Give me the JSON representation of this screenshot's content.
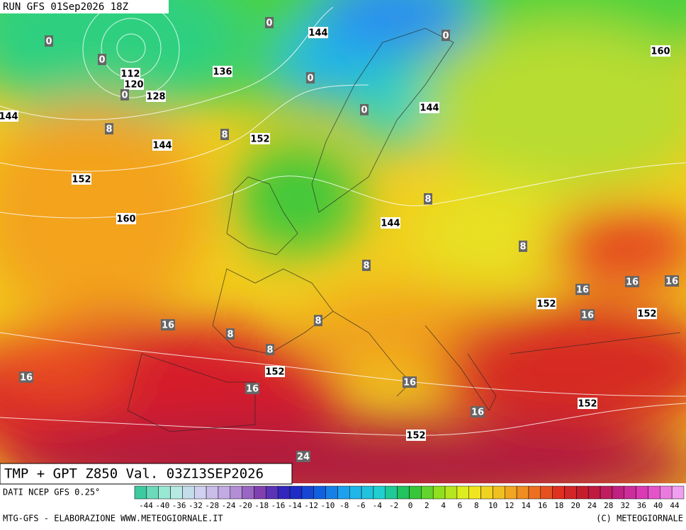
{
  "header": {
    "run": "RUN GFS 01Sep2026 18Z",
    "product": "TMP + GPT Z850 Val. 03Z13SEP2026"
  },
  "map_labels": [
    "0",
    "144",
    "0",
    "160",
    "0",
    "0",
    "112",
    "120",
    "0",
    "128",
    "136",
    "0",
    "144",
    "0",
    "144",
    "8",
    "8",
    "152",
    "144",
    "152",
    "8",
    "160",
    "144",
    "8",
    "8",
    "16",
    "16",
    "16",
    "152",
    "16",
    "152",
    "16",
    "8",
    "8",
    "8",
    "16",
    "152",
    "16",
    "16",
    "16",
    "152",
    "152",
    "24"
  ],
  "footer": {
    "source": "DATI NCEP GFS 0.25°",
    "credit_left": "MTG-GFS - ELABORAZIONE WWW.METEOGIORNALE.IT",
    "credit_right": "(C) METEOGIORNALE"
  },
  "colorbar": {
    "labels": [
      "-44",
      "-40",
      "-36",
      "-32",
      "-28",
      "-24",
      "-20",
      "-18",
      "-16",
      "-14",
      "-12",
      "-10",
      "-8",
      "-6",
      "-4",
      "-2",
      "0",
      "2",
      "4",
      "6",
      "8",
      "10",
      "12",
      "14",
      "16",
      "18",
      "20",
      "24",
      "28",
      "32",
      "36",
      "40",
      "44"
    ]
  }
}
